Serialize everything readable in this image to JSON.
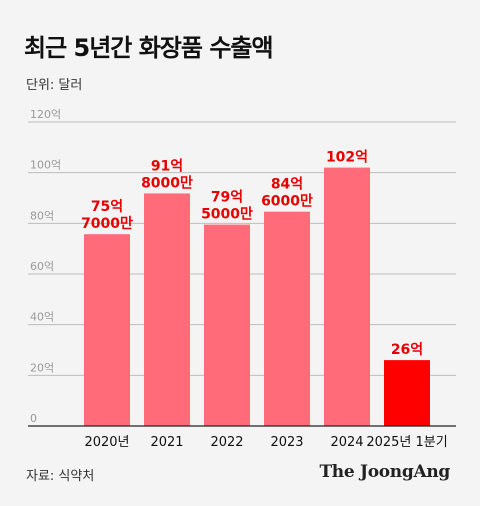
{
  "title": "최근 5년간 화장품 수출액",
  "unit_label": "단위: 달러",
  "source": "자료: 식약처",
  "brand": "The JoongAng",
  "colors": {
    "bar": "#ff6b78",
    "highlight_bar": "#ff0000",
    "label": "#e60000",
    "grid": "#bdbdbd",
    "tick": "#9a9a9a"
  },
  "chart_data": {
    "type": "bar",
    "categories": [
      "2020년",
      "2021",
      "2022",
      "2023",
      "2024",
      "2025년 1분기"
    ],
    "values": [
      75.7,
      91.8,
      79.5,
      84.6,
      102,
      26
    ],
    "data_labels": [
      [
        "75억",
        "7000만"
      ],
      [
        "91억",
        "8000만"
      ],
      [
        "79억",
        "5000만"
      ],
      [
        "84억",
        "6000만"
      ],
      [
        "102억"
      ],
      [
        "26억"
      ]
    ],
    "highlight_index": 5,
    "yticks": [
      "0",
      "20억",
      "40억",
      "60억",
      "80억",
      "100억",
      "120억"
    ],
    "ylim": [
      0,
      120
    ],
    "grid": true
  }
}
